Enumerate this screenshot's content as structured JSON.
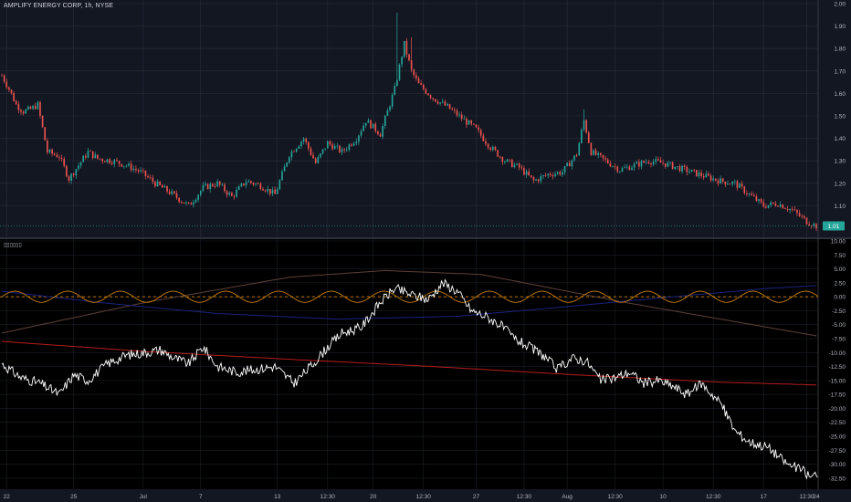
{
  "header": {
    "symbol_title": "AMPLIFY ENERGY CORP, 1h, NYSE",
    "indicator_title": "▯▯▯▯▯▯"
  },
  "colors": {
    "background_top": "#131722",
    "background_bottom": "#000000",
    "grid": "#2a2e39",
    "up_candle": "#26a69a",
    "down_candle": "#ef5350",
    "price_tag": "#26a69a",
    "white_line": "#ffffff",
    "orange_wave": "#c87f0a",
    "red_curve": "#b71c1c",
    "blue_curve": "#1a237e",
    "gray_curve": "#5d4037",
    "zero_line": "#ff9800"
  },
  "chart_data": [
    {
      "type": "candlestick",
      "title": "AMPLIFY ENERGY CORP, 1h, NYSE",
      "ylim": [
        1.0,
        2.0
      ],
      "y_ticks": [
        "2.00",
        "1.90",
        "1.80",
        "1.70",
        "1.60",
        "1.50",
        "1.40",
        "1.30",
        "1.20",
        "1.10"
      ],
      "last_price_label": "1.01",
      "last_price": 1.01,
      "close_anchors": [
        [
          0,
          1.68
        ],
        [
          3,
          1.62
        ],
        [
          6,
          1.55
        ],
        [
          9,
          1.52
        ],
        [
          12,
          1.53
        ],
        [
          15,
          1.55
        ],
        [
          19,
          1.34
        ],
        [
          24,
          1.32
        ],
        [
          28,
          1.22
        ],
        [
          32,
          1.28
        ],
        [
          36,
          1.34
        ],
        [
          40,
          1.31
        ],
        [
          46,
          1.3
        ],
        [
          52,
          1.28
        ],
        [
          58,
          1.25
        ],
        [
          64,
          1.2
        ],
        [
          70,
          1.16
        ],
        [
          78,
          1.1
        ],
        [
          84,
          1.18
        ],
        [
          90,
          1.2
        ],
        [
          96,
          1.14
        ],
        [
          102,
          1.21
        ],
        [
          108,
          1.19
        ],
        [
          114,
          1.15
        ],
        [
          120,
          1.33
        ],
        [
          126,
          1.4
        ],
        [
          131,
          1.29
        ],
        [
          136,
          1.38
        ],
        [
          142,
          1.34
        ],
        [
          148,
          1.4
        ],
        [
          152,
          1.48
        ],
        [
          158,
          1.42
        ],
        [
          164,
          1.62
        ],
        [
          168,
          1.82
        ],
        [
          171,
          1.7
        ],
        [
          174,
          1.64
        ],
        [
          180,
          1.58
        ],
        [
          186,
          1.54
        ],
        [
          192,
          1.49
        ],
        [
          198,
          1.44
        ],
        [
          204,
          1.36
        ],
        [
          210,
          1.3
        ],
        [
          216,
          1.27
        ],
        [
          222,
          1.21
        ],
        [
          228,
          1.24
        ],
        [
          234,
          1.25
        ],
        [
          240,
          1.33
        ],
        [
          243,
          1.48
        ],
        [
          246,
          1.34
        ],
        [
          252,
          1.3
        ],
        [
          258,
          1.26
        ],
        [
          264,
          1.28
        ],
        [
          270,
          1.3
        ],
        [
          276,
          1.29
        ],
        [
          282,
          1.27
        ],
        [
          288,
          1.25
        ],
        [
          294,
          1.23
        ],
        [
          300,
          1.21
        ],
        [
          306,
          1.2
        ],
        [
          312,
          1.15
        ],
        [
          318,
          1.1
        ],
        [
          324,
          1.11
        ],
        [
          330,
          1.08
        ],
        [
          336,
          1.03
        ],
        [
          340,
          1.01
        ]
      ],
      "spikes": [
        {
          "index": 165,
          "high": 1.96
        },
        {
          "index": 171,
          "high": 1.85
        },
        {
          "index": 243,
          "high": 1.53
        }
      ],
      "noise_amplitude": 0.03
    },
    {
      "type": "line",
      "title": "",
      "ylim": [
        -33.5,
        10.0
      ],
      "y_ticks": [
        "10.00",
        "7.50",
        "5.00",
        "2.50",
        "0.00",
        "-2.50",
        "-5.00",
        "-7.50",
        "-10.00",
        "-12.50",
        "-15.00",
        "-17.50",
        "-20.00",
        "-22.50",
        "-25.00",
        "-27.50",
        "-30.00",
        "-32.50"
      ],
      "series": [
        {
          "key": "white",
          "anchors": [
            [
              0,
              -12.0
            ],
            [
              8,
              -14.5
            ],
            [
              16,
              -15.5
            ],
            [
              24,
              -17.5
            ],
            [
              30,
              -14.0
            ],
            [
              36,
              -15.0
            ],
            [
              44,
              -12.0
            ],
            [
              52,
              -10.5
            ],
            [
              60,
              -10.0
            ],
            [
              66,
              -9.5
            ],
            [
              72,
              -11.0
            ],
            [
              78,
              -12.0
            ],
            [
              84,
              -9.0
            ],
            [
              90,
              -12.5
            ],
            [
              98,
              -13.5
            ],
            [
              106,
              -13.0
            ],
            [
              114,
              -12.5
            ],
            [
              122,
              -15.5
            ],
            [
              130,
              -12.0
            ],
            [
              136,
              -9.0
            ],
            [
              142,
              -6.5
            ],
            [
              150,
              -5.5
            ],
            [
              158,
              -1.0
            ],
            [
              164,
              1.5
            ],
            [
              170,
              0.5
            ],
            [
              178,
              -0.5
            ],
            [
              184,
              2.5
            ],
            [
              190,
              1.0
            ],
            [
              196,
              -2.5
            ],
            [
              202,
              -3.5
            ],
            [
              208,
              -5.0
            ],
            [
              214,
              -7.5
            ],
            [
              220,
              -9.0
            ],
            [
              226,
              -10.5
            ],
            [
              232,
              -13.0
            ],
            [
              238,
              -11.0
            ],
            [
              244,
              -11.5
            ],
            [
              250,
              -15.0
            ],
            [
              256,
              -14.5
            ],
            [
              262,
              -13.5
            ],
            [
              268,
              -15.5
            ],
            [
              274,
              -15.0
            ],
            [
              280,
              -16.0
            ],
            [
              286,
              -17.5
            ],
            [
              292,
              -15.5
            ],
            [
              300,
              -19.0
            ],
            [
              306,
              -24.0
            ],
            [
              312,
              -26.0
            ],
            [
              320,
              -27.0
            ],
            [
              328,
              -30.0
            ],
            [
              334,
              -31.0
            ],
            [
              338,
              -32.5
            ],
            [
              340,
              -31.5
            ]
          ],
          "noise_amplitude": 0.9
        },
        {
          "key": "gray",
          "anchors": [
            [
              0,
              -6.5
            ],
            [
              60,
              -1.0
            ],
            [
              120,
              3.5
            ],
            [
              160,
              4.7
            ],
            [
              200,
              4.0
            ],
            [
              260,
              -1.0
            ],
            [
              320,
              -5.5
            ],
            [
              340,
              -7.0
            ]
          ]
        },
        {
          "key": "red",
          "anchors": [
            [
              0,
              -8.0
            ],
            [
              60,
              -9.8
            ],
            [
              120,
              -11.2
            ],
            [
              180,
              -12.5
            ],
            [
              240,
              -14.0
            ],
            [
              300,
              -15.3
            ],
            [
              340,
              -15.8
            ]
          ]
        },
        {
          "key": "blue",
          "anchors": [
            [
              0,
              1.0
            ],
            [
              40,
              -1.0
            ],
            [
              90,
              -3.0
            ],
            [
              140,
              -4.0
            ],
            [
              190,
              -3.5
            ],
            [
              230,
              -2.0
            ],
            [
              280,
              0.0
            ],
            [
              320,
              1.5
            ],
            [
              340,
              2.0
            ]
          ]
        },
        {
          "key": "orange",
          "wave": {
            "amplitude": 1.0,
            "period_candles": 22,
            "center": 0.0
          }
        }
      ],
      "zero_line": 0.0
    }
  ],
  "x_axis": {
    "labels": [
      {
        "text": "22",
        "index": 2
      },
      {
        "text": "25",
        "index": 30
      },
      {
        "text": "Jul",
        "index": 59
      },
      {
        "text": "7",
        "index": 83
      },
      {
        "text": "13",
        "index": 115
      },
      {
        "text": "12:30",
        "index": 136
      },
      {
        "text": "20",
        "index": 155
      },
      {
        "text": "12:30",
        "index": 176
      },
      {
        "text": "27",
        "index": 198
      },
      {
        "text": "12:30",
        "index": 218
      },
      {
        "text": "Aug",
        "index": 236
      },
      {
        "text": "12:30",
        "index": 256
      },
      {
        "text": "10",
        "index": 276
      },
      {
        "text": "12:30",
        "index": 297
      },
      {
        "text": "17",
        "index": 318
      },
      {
        "text": "12:30",
        "index": 336
      },
      {
        "text": "24",
        "index": 355
      }
    ],
    "candle_count": 341
  }
}
